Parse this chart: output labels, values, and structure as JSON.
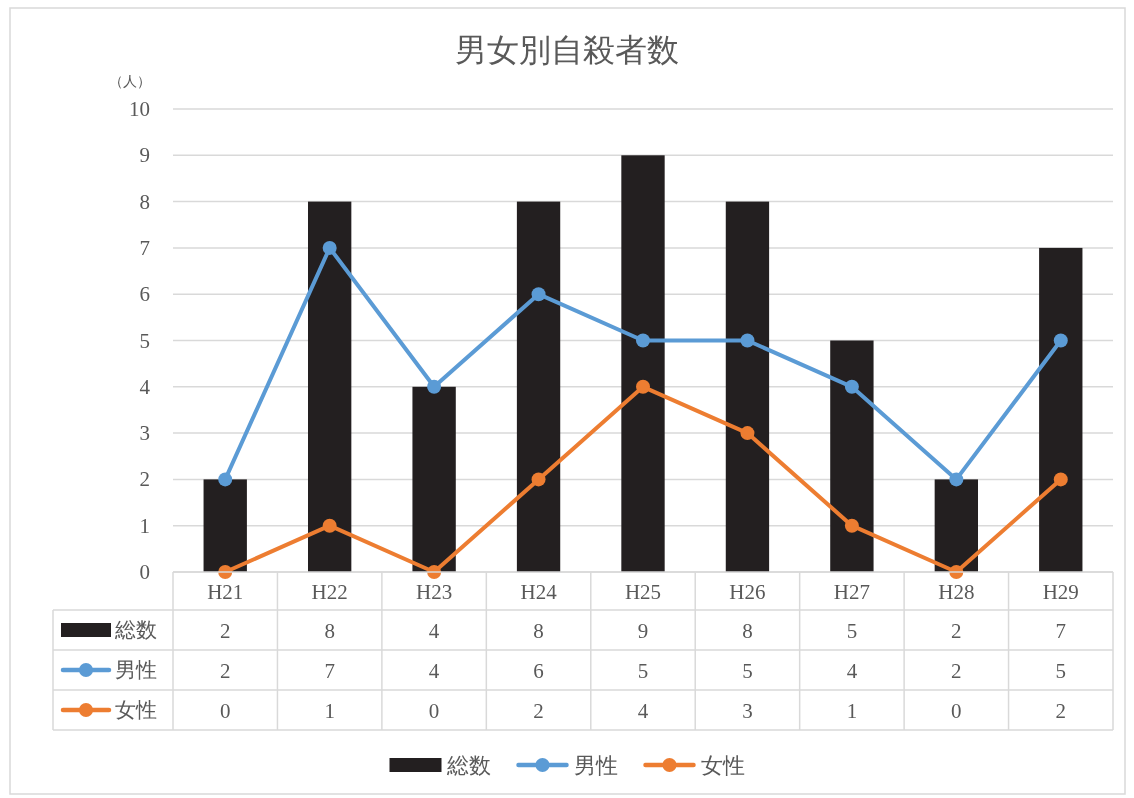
{
  "chart_data": {
    "type": "bar",
    "title": "男女別自殺者数",
    "ylabel": "（人）",
    "categories": [
      "H21",
      "H22",
      "H23",
      "H24",
      "H25",
      "H26",
      "H27",
      "H28",
      "H29"
    ],
    "series": [
      {
        "name": "総数",
        "color": "#231f20",
        "values": [
          2,
          8,
          4,
          8,
          9,
          8,
          5,
          2,
          7
        ]
      },
      {
        "name": "男性",
        "type": "line",
        "color": "#5b9bd5",
        "values": [
          2,
          7,
          4,
          6,
          5,
          5,
          4,
          2,
          5
        ]
      },
      {
        "name": "女性",
        "type": "line",
        "color": "#ed7d31",
        "values": [
          0,
          1,
          0,
          2,
          4,
          3,
          1,
          0,
          2
        ]
      }
    ],
    "ylim": [
      0,
      10
    ],
    "yticks": [
      0,
      1,
      2,
      3,
      4,
      5,
      6,
      7,
      8,
      9,
      10
    ],
    "grid": "y",
    "legend": "bottom",
    "data_labels": true,
    "marker": "circle"
  }
}
